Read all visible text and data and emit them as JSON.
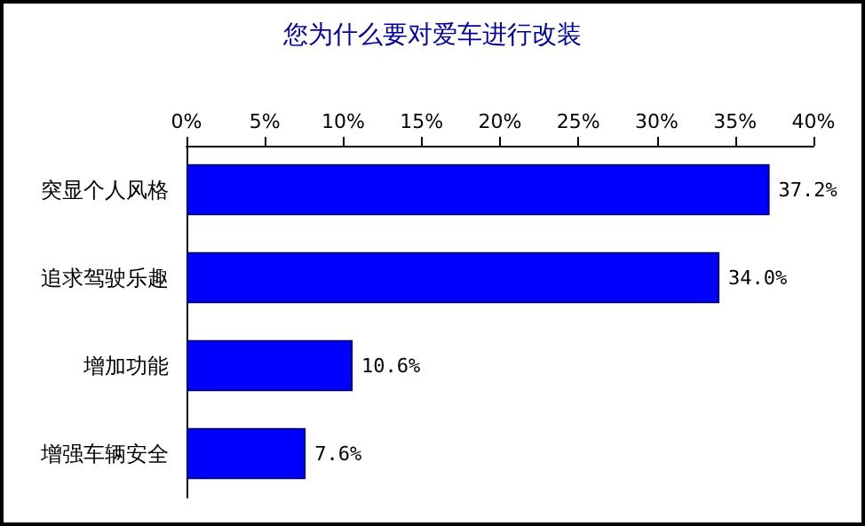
{
  "chart_data": {
    "type": "bar",
    "orientation": "horizontal",
    "title": "您为什么要对爱车进行改装",
    "categories": [
      "突显个人风格",
      "追求驾驶乐趣",
      "增加功能",
      "增强车辆安全"
    ],
    "values": [
      37.2,
      34.0,
      10.6,
      7.6
    ],
    "value_labels": [
      "37.2%",
      "34.0%",
      "10.6%",
      "7.6%"
    ],
    "color": "#0000ff",
    "xlim": [
      0,
      40
    ],
    "xticks": [
      {
        "value": 0,
        "label": "0%"
      },
      {
        "value": 5,
        "label": "5%"
      },
      {
        "value": 10,
        "label": "10%"
      },
      {
        "value": 15,
        "label": "15%"
      },
      {
        "value": 20,
        "label": "20%"
      },
      {
        "value": 25,
        "label": "25%"
      },
      {
        "value": 30,
        "label": "30%"
      },
      {
        "value": 35,
        "label": "35%"
      },
      {
        "value": 40,
        "label": "40%"
      }
    ],
    "grid": false
  }
}
